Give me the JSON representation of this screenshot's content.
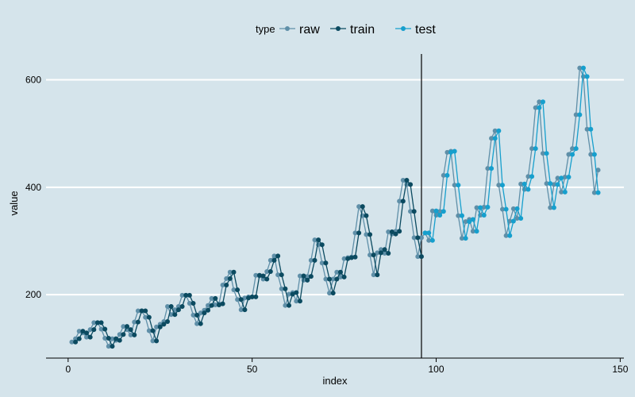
{
  "chart_data": {
    "type": "line",
    "title": "",
    "xlabel": "index",
    "ylabel": "value",
    "xlim": [
      -6,
      151
    ],
    "ylim": [
      82,
      648
    ],
    "x_ticks": [
      0,
      50,
      100,
      150
    ],
    "y_ticks": [
      200,
      400,
      600
    ],
    "grid": "horizontal-major",
    "legend": {
      "title": "type",
      "position": "top"
    },
    "split_marker_x": 96,
    "colors": {
      "raw": "#5f8fa8",
      "train": "#0b4a60",
      "test": "#169fcd",
      "background": "#d5e4eb",
      "grid": "#ffffff",
      "axis": "#000000"
    },
    "series": [
      {
        "name": "raw",
        "x_start": 1,
        "values": [
          112,
          118,
          132,
          129,
          121,
          135,
          148,
          148,
          136,
          119,
          104,
          118,
          115,
          126,
          141,
          135,
          125,
          149,
          170,
          170,
          158,
          133,
          114,
          140,
          145,
          150,
          178,
          163,
          172,
          178,
          199,
          199,
          184,
          162,
          146,
          166,
          171,
          180,
          193,
          181,
          183,
          218,
          230,
          242,
          209,
          191,
          172,
          194,
          196,
          196,
          236,
          235,
          229,
          243,
          264,
          272,
          237,
          211,
          180,
          201,
          204,
          188,
          235,
          227,
          234,
          264,
          302,
          293,
          259,
          229,
          203,
          229,
          242,
          233,
          267,
          269,
          270,
          315,
          364,
          347,
          312,
          274,
          237,
          278,
          284,
          277,
          317,
          313,
          318,
          374,
          413,
          405,
          355,
          306,
          271,
          306,
          315,
          301,
          356,
          348,
          355,
          422,
          465,
          467,
          404,
          347,
          305,
          336,
          340,
          318,
          362,
          348,
          363,
          435,
          491,
          505,
          404,
          359,
          310,
          337,
          360,
          342,
          406,
          396,
          420,
          472,
          548,
          559,
          463,
          407,
          362,
          405,
          417,
          391,
          419,
          461,
          472,
          535,
          622,
          606,
          508,
          461,
          390,
          432
        ]
      },
      {
        "name": "train",
        "x_start": 2,
        "values": [
          112,
          118,
          132,
          129,
          121,
          135,
          148,
          148,
          136,
          119,
          104,
          118,
          115,
          126,
          141,
          135,
          125,
          149,
          170,
          170,
          158,
          133,
          114,
          140,
          145,
          150,
          178,
          163,
          172,
          178,
          199,
          199,
          184,
          162,
          146,
          166,
          171,
          180,
          193,
          181,
          183,
          218,
          230,
          242,
          209,
          191,
          172,
          194,
          196,
          196,
          236,
          235,
          229,
          243,
          264,
          272,
          237,
          211,
          180,
          201,
          204,
          188,
          235,
          227,
          234,
          264,
          302,
          293,
          259,
          229,
          203,
          229,
          242,
          233,
          267,
          269,
          270,
          315,
          364,
          347,
          312,
          274,
          237,
          278,
          284,
          277,
          317,
          313,
          318,
          374,
          413,
          405,
          355,
          306,
          271
        ]
      },
      {
        "name": "test",
        "x_start": 97,
        "values": [
          315,
          315,
          301,
          356,
          348,
          355,
          422,
          465,
          467,
          404,
          347,
          305,
          336,
          340,
          318,
          362,
          348,
          363,
          435,
          491,
          505,
          404,
          359,
          310,
          337,
          360,
          342,
          406,
          396,
          420,
          472,
          548,
          559,
          463,
          407,
          362,
          405,
          417,
          391,
          419,
          461,
          472,
          535,
          622,
          606,
          508,
          461,
          390
        ]
      }
    ]
  }
}
